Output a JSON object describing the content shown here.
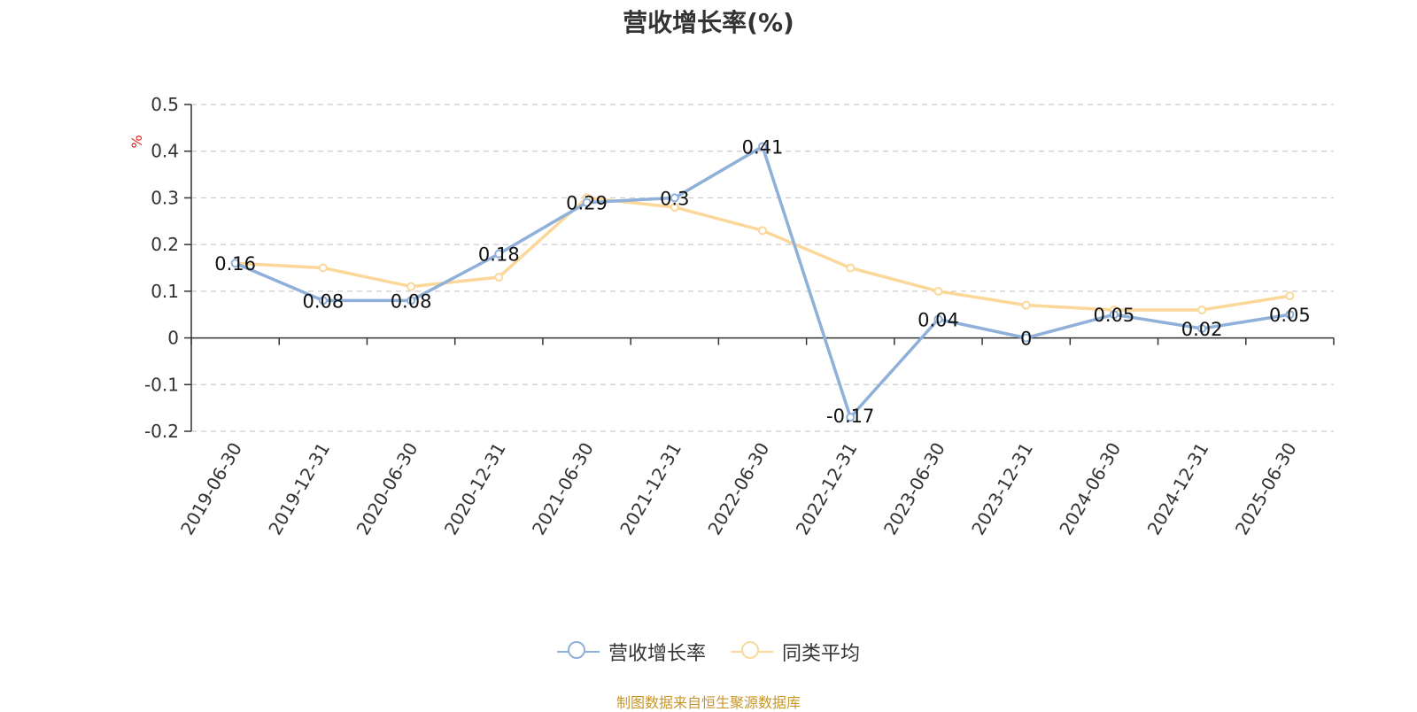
{
  "title": "营收增长率(%)",
  "source_note": "制图数据来自恒生聚源数据库",
  "chart_data": {
    "type": "line",
    "title": "营收增长率(%)",
    "ylabel": "%",
    "xlabel": "",
    "ylim": [
      -0.2,
      0.5
    ],
    "yticks": [
      -0.2,
      -0.1,
      0,
      0.1,
      0.2,
      0.3,
      0.4,
      0.5
    ],
    "ytick_labels": [
      "-0.2",
      "-0.1",
      "0",
      "0.1",
      "0.2",
      "0.3",
      "0.4",
      "0.5"
    ],
    "grid": true,
    "legend_position": "bottom-center",
    "categories": [
      "2019-06-30",
      "2019-12-31",
      "2020-06-30",
      "2020-12-31",
      "2021-06-30",
      "2021-12-31",
      "2022-06-30",
      "2022-12-31",
      "2023-06-30",
      "2023-12-31",
      "2024-06-30",
      "2024-12-31",
      "2025-06-30"
    ],
    "series": [
      {
        "name": "营收增长率",
        "color": "#8fb0d9",
        "values": [
          0.16,
          0.08,
          0.08,
          0.18,
          0.29,
          0.3,
          0.41,
          -0.17,
          0.04,
          0,
          0.05,
          0.02,
          0.05
        ],
        "labels": [
          "0.16",
          "0.08",
          "0.08",
          "0.18",
          "0.29",
          "0.3",
          "0.41",
          "-0.17",
          "0.04",
          "0",
          "0.05",
          "0.02",
          "0.05"
        ]
      },
      {
        "name": "同类平均",
        "color": "#fbd89a",
        "values": [
          0.16,
          0.15,
          0.11,
          0.13,
          0.3,
          0.28,
          0.23,
          0.15,
          0.1,
          0.07,
          0.06,
          0.06,
          0.09
        ]
      }
    ]
  }
}
